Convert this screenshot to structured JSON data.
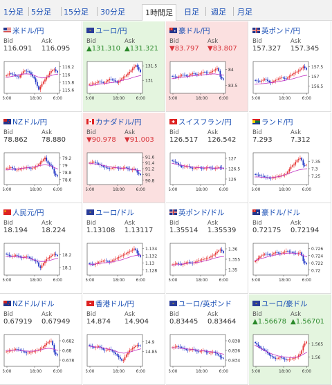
{
  "timeframes": [
    {
      "label": "1分足",
      "active": false
    },
    {
      "label": "5分足",
      "active": false
    },
    {
      "label": "15分足",
      "active": false
    },
    {
      "label": "30分足",
      "active": false
    },
    {
      "label": "1時間足",
      "active": true
    },
    {
      "label": "日足",
      "active": false
    },
    {
      "label": "週足",
      "active": false
    },
    {
      "label": "月足",
      "active": false
    }
  ],
  "colors": {
    "up_bg": "#e4f5df",
    "down_bg": "#fbe0e0",
    "link": "#1a4fb5",
    "candle_up": "#e53030",
    "candle_down": "#1a2fc4",
    "ma": "#c030c0"
  },
  "time_labels": [
    "6:00",
    "18:00",
    "6:00"
  ],
  "bid_label": "Bid",
  "ask_label": "Ask",
  "pairs": [
    {
      "name": "米ドル/円",
      "flag": "us",
      "bid": "116.091",
      "ask": "116.095",
      "state": "none",
      "ticks": [
        "116.2",
        "116",
        "115.8",
        "115.6"
      ],
      "ymin": 115.55,
      "ymax": 116.3,
      "open": 116.0,
      "close": 116.09,
      "path": [
        [
          0,
          0.45
        ],
        [
          0.08,
          0.35
        ],
        [
          0.15,
          0.4
        ],
        [
          0.25,
          0.5
        ],
        [
          0.35,
          0.25
        ],
        [
          0.45,
          0.3
        ],
        [
          0.55,
          0.55
        ],
        [
          0.6,
          0.8
        ],
        [
          0.63,
          0.95
        ],
        [
          0.7,
          0.7
        ],
        [
          0.78,
          0.5
        ],
        [
          0.85,
          0.3
        ],
        [
          0.92,
          0.2
        ],
        [
          1,
          0.35
        ]
      ],
      "ma": [
        0.5,
        0.48,
        0.45,
        0.42,
        0.38,
        0.37,
        0.38,
        0.42,
        0.48,
        0.52,
        0.5,
        0.45,
        0.4,
        0.38
      ]
    },
    {
      "name": "ユーロ/円",
      "flag": "eu",
      "bid": "▲131.310",
      "ask": "▲131.321",
      "state": "up",
      "ticks": [
        "131.5",
        "131"
      ],
      "ymin": 130.6,
      "ymax": 131.6,
      "open": 130.8,
      "close": 131.31,
      "path": [
        [
          0,
          0.75
        ],
        [
          0.1,
          0.72
        ],
        [
          0.2,
          0.65
        ],
        [
          0.3,
          0.7
        ],
        [
          0.4,
          0.55
        ],
        [
          0.5,
          0.62
        ],
        [
          0.55,
          0.7
        ],
        [
          0.62,
          0.55
        ],
        [
          0.7,
          0.45
        ],
        [
          0.78,
          0.3
        ],
        [
          0.85,
          0.15
        ],
        [
          0.9,
          0.05
        ],
        [
          0.95,
          0.2
        ],
        [
          1,
          0.35
        ]
      ],
      "ma": [
        0.8,
        0.78,
        0.76,
        0.74,
        0.72,
        0.7,
        0.68,
        0.65,
        0.62,
        0.58,
        0.55,
        0.5,
        0.46,
        0.43
      ]
    },
    {
      "name": "豪ドル/円",
      "flag": "au",
      "bid": "▼83.797",
      "ask": "▼83.807",
      "state": "down",
      "ticks": [
        "84",
        "83.5"
      ],
      "ymin": 83.3,
      "ymax": 84.2,
      "open": 83.95,
      "close": 83.8,
      "path": [
        [
          0,
          0.45
        ],
        [
          0.1,
          0.5
        ],
        [
          0.2,
          0.4
        ],
        [
          0.3,
          0.45
        ],
        [
          0.4,
          0.35
        ],
        [
          0.5,
          0.4
        ],
        [
          0.6,
          0.3
        ],
        [
          0.7,
          0.35
        ],
        [
          0.8,
          0.25
        ],
        [
          0.88,
          0.15
        ],
        [
          0.93,
          0.5
        ],
        [
          1,
          0.6
        ]
      ],
      "ma": [
        0.55,
        0.52,
        0.5,
        0.48,
        0.45,
        0.43,
        0.42,
        0.4,
        0.38,
        0.37,
        0.4,
        0.42
      ]
    },
    {
      "name": "英ポンド/円",
      "flag": "gb",
      "bid": "157.327",
      "ask": "157.345",
      "state": "none",
      "ticks": [
        "157.5",
        "157",
        "156.5"
      ],
      "ymin": 156.2,
      "ymax": 157.7,
      "open": 156.9,
      "close": 157.33,
      "path": [
        [
          0,
          0.6
        ],
        [
          0.1,
          0.65
        ],
        [
          0.2,
          0.55
        ],
        [
          0.3,
          0.7
        ],
        [
          0.4,
          0.6
        ],
        [
          0.5,
          0.5
        ],
        [
          0.6,
          0.55
        ],
        [
          0.7,
          0.4
        ],
        [
          0.8,
          0.3
        ],
        [
          0.88,
          0.2
        ],
        [
          0.93,
          0.1
        ],
        [
          1,
          0.25
        ]
      ],
      "ma": [
        0.75,
        0.74,
        0.72,
        0.7,
        0.68,
        0.65,
        0.62,
        0.58,
        0.55,
        0.5,
        0.45,
        0.42
      ]
    },
    {
      "name": "NZドル/円",
      "flag": "nz",
      "bid": "78.862",
      "ask": "78.880",
      "state": "none",
      "ticks": [
        "79.2",
        "79",
        "78.8",
        "78.6"
      ],
      "ymin": 78.5,
      "ymax": 79.3,
      "open": 78.9,
      "close": 78.87,
      "path": [
        [
          0,
          0.5
        ],
        [
          0.1,
          0.45
        ],
        [
          0.2,
          0.55
        ],
        [
          0.3,
          0.5
        ],
        [
          0.4,
          0.45
        ],
        [
          0.5,
          0.5
        ],
        [
          0.6,
          0.4
        ],
        [
          0.7,
          0.2
        ],
        [
          0.75,
          0.1
        ],
        [
          0.8,
          0.3
        ],
        [
          0.88,
          0.4
        ],
        [
          0.93,
          0.7
        ],
        [
          1,
          0.8
        ]
      ],
      "ma": [
        0.55,
        0.53,
        0.52,
        0.5,
        0.48,
        0.47,
        0.45,
        0.42,
        0.38,
        0.36,
        0.38,
        0.45,
        0.52
      ]
    },
    {
      "name": "カナダドル/円",
      "flag": "ca",
      "bid": "▼90.978",
      "ask": "▼91.003",
      "state": "down",
      "ticks": [
        "91.6",
        "91.4",
        "91.2",
        "91",
        "90.8"
      ],
      "ymin": 90.7,
      "ymax": 91.7,
      "open": 91.3,
      "close": 90.98,
      "path": [
        [
          0,
          0.3
        ],
        [
          0.1,
          0.25
        ],
        [
          0.2,
          0.35
        ],
        [
          0.3,
          0.45
        ],
        [
          0.4,
          0.5
        ],
        [
          0.5,
          0.45
        ],
        [
          0.6,
          0.5
        ],
        [
          0.7,
          0.45
        ],
        [
          0.8,
          0.55
        ],
        [
          0.88,
          0.5
        ],
        [
          0.93,
          0.65
        ],
        [
          1,
          0.75
        ]
      ],
      "ma": [
        0.3,
        0.32,
        0.35,
        0.38,
        0.42,
        0.45,
        0.47,
        0.48,
        0.5,
        0.52,
        0.55,
        0.58
      ]
    },
    {
      "name": "スイスフラン/円",
      "flag": "ch",
      "bid": "126.517",
      "ask": "126.542",
      "state": "none",
      "ticks": [
        "127",
        "126.5",
        "126"
      ],
      "ymin": 125.8,
      "ymax": 127.2,
      "open": 126.4,
      "close": 126.52,
      "path": [
        [
          0,
          0.2
        ],
        [
          0.1,
          0.3
        ],
        [
          0.2,
          0.45
        ],
        [
          0.3,
          0.4
        ],
        [
          0.4,
          0.5
        ],
        [
          0.5,
          0.45
        ],
        [
          0.6,
          0.5
        ],
        [
          0.7,
          0.45
        ],
        [
          0.8,
          0.5
        ],
        [
          0.9,
          0.45
        ],
        [
          1,
          0.5
        ]
      ],
      "ma": [
        0.3,
        0.35,
        0.38,
        0.42,
        0.45,
        0.46,
        0.47,
        0.47,
        0.48,
        0.48,
        0.48
      ]
    },
    {
      "name": "ランド/円",
      "flag": "za",
      "bid": "7.293",
      "ask": "7.312",
      "state": "none",
      "ticks": [
        "7.35",
        "7.3",
        "7.25"
      ],
      "ymin": 7.2,
      "ymax": 7.4,
      "open": 7.24,
      "close": 7.3,
      "path": [
        [
          0,
          0.7
        ],
        [
          0.1,
          0.75
        ],
        [
          0.2,
          0.8
        ],
        [
          0.3,
          0.85
        ],
        [
          0.4,
          0.8
        ],
        [
          0.5,
          0.75
        ],
        [
          0.6,
          0.7
        ],
        [
          0.7,
          0.4
        ],
        [
          0.75,
          0.35
        ],
        [
          0.8,
          0.2
        ],
        [
          0.88,
          0.1
        ],
        [
          0.93,
          0.4
        ],
        [
          1,
          0.35
        ]
      ],
      "ma": [
        0.8,
        0.8,
        0.82,
        0.83,
        0.82,
        0.8,
        0.78,
        0.72,
        0.66,
        0.6,
        0.55,
        0.52,
        0.5
      ]
    },
    {
      "name": "人民元/円",
      "flag": "cn",
      "bid": "18.194",
      "ask": "18.224",
      "state": "none",
      "ticks": [
        "18.2",
        "18.1"
      ],
      "ymin": 18.05,
      "ymax": 18.28,
      "open": 18.18,
      "close": 18.19,
      "path": [
        [
          0,
          0.3
        ],
        [
          0.1,
          0.4
        ],
        [
          0.2,
          0.35
        ],
        [
          0.3,
          0.45
        ],
        [
          0.4,
          0.4
        ],
        [
          0.5,
          0.5
        ],
        [
          0.6,
          0.6
        ],
        [
          0.65,
          0.85
        ],
        [
          0.7,
          0.7
        ],
        [
          0.78,
          0.5
        ],
        [
          0.85,
          0.4
        ],
        [
          0.92,
          0.3
        ],
        [
          1,
          0.4
        ]
      ],
      "ma": [
        0.4,
        0.4,
        0.41,
        0.42,
        0.43,
        0.45,
        0.5,
        0.55,
        0.58,
        0.58,
        0.55,
        0.5,
        0.47
      ]
    },
    {
      "name": "ユーロ/ドル",
      "flag": "eu",
      "bid": "1.13108",
      "ask": "1.13117",
      "state": "none",
      "ticks": [
        "1.134",
        "1.132",
        "1.13",
        "1.128"
      ],
      "ymin": 1.127,
      "ymax": 1.135,
      "open": 1.129,
      "close": 1.131,
      "path": [
        [
          0,
          0.65
        ],
        [
          0.1,
          0.7
        ],
        [
          0.2,
          0.6
        ],
        [
          0.3,
          0.55
        ],
        [
          0.4,
          0.6
        ],
        [
          0.5,
          0.5
        ],
        [
          0.6,
          0.4
        ],
        [
          0.7,
          0.3
        ],
        [
          0.8,
          0.2
        ],
        [
          0.88,
          0.1
        ],
        [
          0.93,
          0.3
        ],
        [
          1,
          0.45
        ]
      ],
      "ma": [
        0.7,
        0.68,
        0.66,
        0.64,
        0.62,
        0.6,
        0.56,
        0.52,
        0.46,
        0.4,
        0.36,
        0.35
      ]
    },
    {
      "name": "英ポンド/ドル",
      "flag": "gb",
      "bid": "1.35514",
      "ask": "1.35539",
      "state": "none",
      "ticks": [
        "1.36",
        "1.355",
        "1.35"
      ],
      "ymin": 1.348,
      "ymax": 1.362,
      "open": 1.351,
      "close": 1.355,
      "path": [
        [
          0,
          0.7
        ],
        [
          0.1,
          0.65
        ],
        [
          0.2,
          0.7
        ],
        [
          0.3,
          0.6
        ],
        [
          0.4,
          0.65
        ],
        [
          0.5,
          0.55
        ],
        [
          0.6,
          0.5
        ],
        [
          0.7,
          0.45
        ],
        [
          0.8,
          0.35
        ],
        [
          0.88,
          0.2
        ],
        [
          0.93,
          0.15
        ],
        [
          1,
          0.3
        ]
      ],
      "ma": [
        0.72,
        0.7,
        0.68,
        0.66,
        0.64,
        0.62,
        0.6,
        0.56,
        0.52,
        0.46,
        0.42,
        0.4
      ]
    },
    {
      "name": "豪ドル/ドル",
      "flag": "au",
      "bid": "0.72175",
      "ask": "0.72194",
      "state": "none",
      "ticks": [
        "0.726",
        "0.724",
        "0.722",
        "0.72"
      ],
      "ymin": 0.719,
      "ymax": 0.727,
      "open": 0.7235,
      "close": 0.7218,
      "path": [
        [
          0,
          0.6
        ],
        [
          0.1,
          0.4
        ],
        [
          0.2,
          0.3
        ],
        [
          0.3,
          0.35
        ],
        [
          0.4,
          0.25
        ],
        [
          0.5,
          0.3
        ],
        [
          0.6,
          0.2
        ],
        [
          0.7,
          0.25
        ],
        [
          0.8,
          0.3
        ],
        [
          0.88,
          0.25
        ],
        [
          0.93,
          0.6
        ],
        [
          1,
          0.7
        ]
      ],
      "ma": [
        0.55,
        0.5,
        0.45,
        0.4,
        0.36,
        0.33,
        0.3,
        0.28,
        0.28,
        0.3,
        0.35,
        0.42
      ]
    },
    {
      "name": "NZドル/ドル",
      "flag": "nz",
      "bid": "0.67919",
      "ask": "0.67949",
      "state": "none",
      "ticks": [
        "0.682",
        "0.68",
        "0.678"
      ],
      "ymin": 0.677,
      "ymax": 0.683,
      "open": 0.68,
      "close": 0.6792,
      "path": [
        [
          0,
          0.55
        ],
        [
          0.1,
          0.5
        ],
        [
          0.2,
          0.45
        ],
        [
          0.3,
          0.5
        ],
        [
          0.4,
          0.6
        ],
        [
          0.5,
          0.55
        ],
        [
          0.6,
          0.5
        ],
        [
          0.7,
          0.4
        ],
        [
          0.8,
          0.2
        ],
        [
          0.88,
          0.15
        ],
        [
          0.93,
          0.6
        ],
        [
          1,
          0.7
        ]
      ],
      "ma": [
        0.5,
        0.5,
        0.49,
        0.5,
        0.52,
        0.53,
        0.52,
        0.5,
        0.45,
        0.42,
        0.45,
        0.5
      ]
    },
    {
      "name": "香港ドル/円",
      "flag": "hk",
      "bid": "14.874",
      "ask": "14.904",
      "state": "none",
      "ticks": [
        "14.9",
        "14.85"
      ],
      "ymin": 14.78,
      "ymax": 14.93,
      "open": 14.87,
      "close": 14.875,
      "path": [
        [
          0,
          0.3
        ],
        [
          0.1,
          0.4
        ],
        [
          0.2,
          0.35
        ],
        [
          0.3,
          0.5
        ],
        [
          0.4,
          0.45
        ],
        [
          0.5,
          0.6
        ],
        [
          0.6,
          0.8
        ],
        [
          0.65,
          0.9
        ],
        [
          0.7,
          0.7
        ],
        [
          0.78,
          0.5
        ],
        [
          0.85,
          0.4
        ],
        [
          0.92,
          0.3
        ],
        [
          1,
          0.35
        ]
      ],
      "ma": [
        0.35,
        0.36,
        0.38,
        0.4,
        0.43,
        0.47,
        0.52,
        0.57,
        0.6,
        0.58,
        0.53,
        0.48,
        0.44
      ]
    },
    {
      "name": "ユーロ/英ポンド",
      "flag": "eu",
      "bid": "0.83445",
      "ask": "0.83464",
      "state": "none",
      "ticks": [
        "0.838",
        "0.836",
        "0.834"
      ],
      "ymin": 0.833,
      "ymax": 0.839,
      "open": 0.8365,
      "close": 0.8345,
      "path": [
        [
          0,
          0.4
        ],
        [
          0.1,
          0.35
        ],
        [
          0.2,
          0.4
        ],
        [
          0.3,
          0.5
        ],
        [
          0.4,
          0.45
        ],
        [
          0.5,
          0.55
        ],
        [
          0.6,
          0.5
        ],
        [
          0.7,
          0.6
        ],
        [
          0.8,
          0.55
        ],
        [
          0.88,
          0.65
        ],
        [
          0.93,
          0.75
        ],
        [
          1,
          0.8
        ]
      ],
      "ma": [
        0.4,
        0.41,
        0.42,
        0.44,
        0.46,
        0.48,
        0.5,
        0.52,
        0.54,
        0.56,
        0.6,
        0.64
      ]
    },
    {
      "name": "ユーロ/豪ドル",
      "flag": "eu",
      "bid": "▲1.56678",
      "ask": "▲1.56701",
      "state": "up",
      "ticks": [
        "1.565",
        "1.56"
      ],
      "ymin": 1.557,
      "ymax": 1.568,
      "open": 1.561,
      "close": 1.5668,
      "path": [
        [
          0,
          0.2
        ],
        [
          0.1,
          0.4
        ],
        [
          0.2,
          0.5
        ],
        [
          0.3,
          0.7
        ],
        [
          0.4,
          0.8
        ],
        [
          0.5,
          0.75
        ],
        [
          0.6,
          0.85
        ],
        [
          0.7,
          0.8
        ],
        [
          0.8,
          0.75
        ],
        [
          0.88,
          0.6
        ],
        [
          0.93,
          0.3
        ],
        [
          1,
          0.15
        ]
      ],
      "ma": [
        0.3,
        0.4,
        0.5,
        0.58,
        0.65,
        0.7,
        0.73,
        0.75,
        0.76,
        0.74,
        0.66,
        0.56
      ]
    }
  ]
}
